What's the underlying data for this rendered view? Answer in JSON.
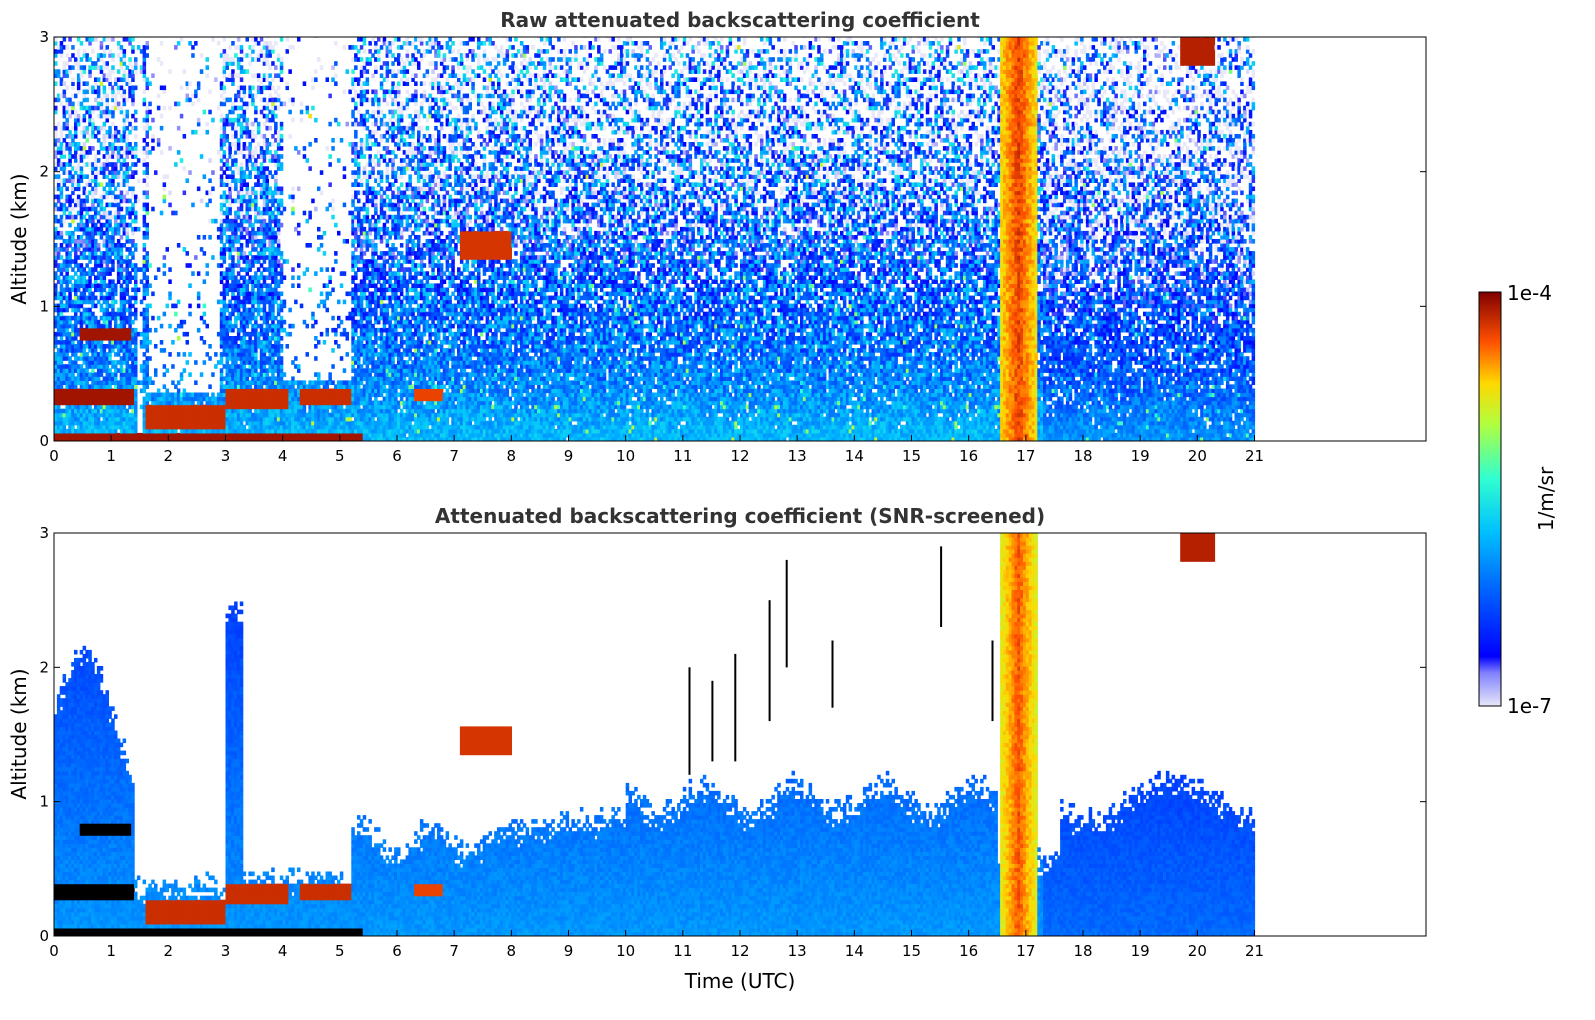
{
  "chart_data": [
    {
      "type": "heatmap",
      "title": "Raw attenuated backscattering coefficient",
      "xlabel": "",
      "ylabel": "Altitude (km)",
      "xlim": [
        0,
        24
      ],
      "ylim": [
        0,
        3
      ],
      "xticks": [
        "0",
        "1",
        "2",
        "3",
        "4",
        "5",
        "6",
        "7",
        "8",
        "9",
        "10",
        "11",
        "12",
        "13",
        "14",
        "15",
        "16",
        "17",
        "18",
        "19",
        "20",
        "21"
      ],
      "yticks": [
        "0",
        "1",
        "2",
        "3"
      ],
      "data_end_hour": 21,
      "features": [
        {
          "name": "surface layer",
          "x": [
            0,
            5.4
          ],
          "y": [
            0,
            0.06
          ],
          "level": "high"
        },
        {
          "name": "low cloud",
          "x": [
            0,
            1.4
          ],
          "y": [
            0.28,
            0.38
          ],
          "level": "high"
        },
        {
          "name": "cloud",
          "x": [
            0.45,
            1.35
          ],
          "y": [
            0.75,
            0.85
          ],
          "level": "high"
        },
        {
          "name": "cloud",
          "x": [
            1.6,
            3.0
          ],
          "y": [
            0.1,
            0.3
          ],
          "level": "high"
        },
        {
          "name": "cloud",
          "x": [
            3.0,
            4.1
          ],
          "y": [
            0.25,
            0.4
          ],
          "level": "high"
        },
        {
          "name": "cloud",
          "x": [
            4.3,
            5.2
          ],
          "y": [
            0.28,
            0.38
          ],
          "level": "high"
        },
        {
          "name": "precipitation column",
          "x": [
            16.5,
            17.2
          ],
          "y": [
            0,
            3
          ],
          "level": "very high"
        },
        {
          "name": "cloud",
          "x": [
            19.7,
            20.3
          ],
          "y": [
            2.75,
            3.0
          ],
          "level": "high"
        }
      ]
    },
    {
      "type": "heatmap",
      "title": "Attenuated backscattering coefficient (SNR-screened)",
      "xlabel": "Time (UTC)",
      "ylabel": "Altitude (km)",
      "xlim": [
        0,
        24
      ],
      "ylim": [
        0,
        3
      ],
      "xticks": [
        "0",
        "1",
        "2",
        "3",
        "4",
        "5",
        "6",
        "7",
        "8",
        "9",
        "10",
        "11",
        "12",
        "13",
        "14",
        "15",
        "16",
        "17",
        "18",
        "19",
        "20",
        "21"
      ],
      "yticks": [
        "0",
        "1",
        "2",
        "3"
      ],
      "data_end_hour": 21,
      "screened": true
    }
  ],
  "colorbar": {
    "label": "1/m/sr",
    "max_label": "1e-4",
    "min_label": "1e-7",
    "colormap": [
      "#e8e8f8",
      "#0000ff",
      "#0080ff",
      "#00c8ff",
      "#40ffc0",
      "#c0ff40",
      "#ffd000",
      "#ff6000",
      "#d00000",
      "#800000"
    ]
  }
}
